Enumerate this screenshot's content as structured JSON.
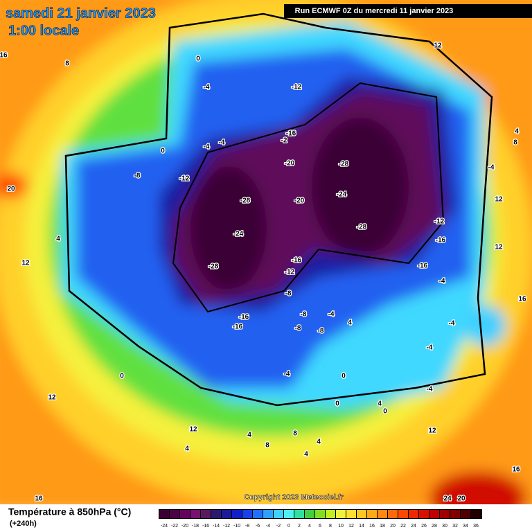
{
  "header": {
    "date": "samedi 21 janvier 2023",
    "time": "1:00 locale",
    "run": "Run ECMWF 0Z du mercredi 11 janvier 2023"
  },
  "map": {
    "contour_labels": [
      16,
      8,
      0,
      12,
      -4,
      -12,
      4,
      8,
      -16,
      -2,
      -4,
      -4,
      0,
      -8,
      -12,
      -20,
      -28,
      -4,
      20,
      -28,
      -20,
      -24,
      12,
      -24,
      -28,
      -12,
      4,
      -16,
      12,
      12,
      -28,
      -16,
      -16,
      -12,
      -4,
      -8,
      16,
      -16,
      -8,
      -4,
      -4,
      -16,
      -8,
      -8,
      4,
      -4,
      0,
      -4,
      0,
      -4,
      12,
      0,
      4,
      0,
      12,
      4,
      8,
      4,
      12,
      4,
      8,
      4,
      16,
      16,
      24,
      20
    ],
    "copyright": "Copyright 2023 Meteociel.fr"
  },
  "footer": {
    "title": "Température à 850hPa (°C)",
    "lead": "(+240h)"
  },
  "legend": {
    "ticks": [
      -24,
      -22,
      -20,
      -18,
      -16,
      -14,
      -12,
      -10,
      -8,
      -6,
      -4,
      -2,
      0,
      2,
      4,
      6,
      8,
      10,
      12,
      14,
      16,
      18,
      20,
      22,
      24,
      26,
      28,
      30,
      32,
      34,
      36
    ],
    "colors": [
      "#3a0033",
      "#4d0047",
      "#66005e",
      "#7a1070",
      "#5a1a5e",
      "#2a1a6e",
      "#1a1a9a",
      "#1020c8",
      "#1a40e8",
      "#2070ff",
      "#30a0ff",
      "#40d0ff",
      "#50f0f0",
      "#30e0a0",
      "#40d040",
      "#80e020",
      "#c0f020",
      "#f0f040",
      "#ffe030",
      "#ffc820",
      "#ffa818",
      "#ff8810",
      "#ff6808",
      "#ff4800",
      "#f02800",
      "#d81000",
      "#c00000",
      "#a00000",
      "#800000",
      "#500000",
      "#200000"
    ]
  }
}
